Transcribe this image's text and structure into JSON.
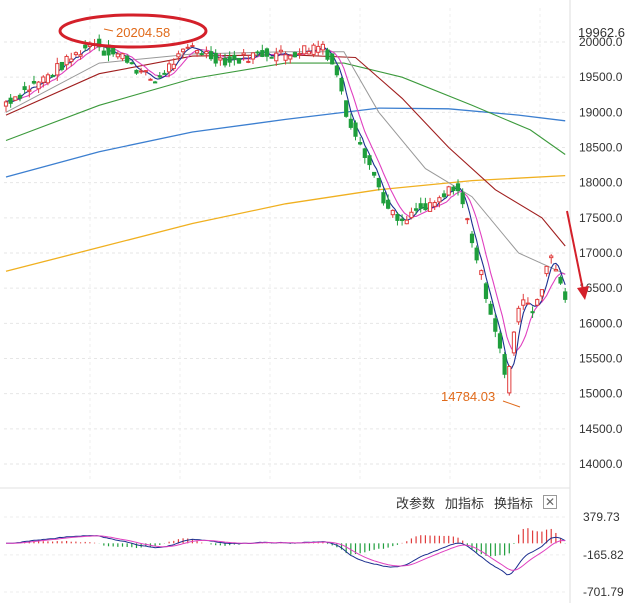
{
  "toolbar": {
    "modify_params": "改参数",
    "add_indicator": "加指标",
    "switch_indicator": "换指标",
    "close_symbol": "✕"
  },
  "annotations": {
    "high_label": "20204.58",
    "low_label": "14784.03",
    "last_price": "19962.6"
  },
  "colors": {
    "up": "#e03c3c",
    "down": "#1f9e3c",
    "ma5": "#1c2f8f",
    "ma10": "#e040c0",
    "ma20": "#999999",
    "ma30": "#a01e1e",
    "ma60": "#3c9a3c",
    "ma120": "#3c7fd0",
    "ma250": "#f0b020",
    "annotation": "#e06a1a",
    "ellipse": "#d4202a",
    "arrow": "#d4202a"
  },
  "chart_data": [
    {
      "type": "candlestick",
      "ylim": [
        13700,
        20350
      ],
      "y_ticks": [
        "20000.0",
        "19500.0",
        "19000.0",
        "18500.0",
        "18000.0",
        "17500.0",
        "17000.0",
        "16500.0",
        "16000.0",
        "15500.0",
        "15000.0",
        "14500.0",
        "14000.0"
      ],
      "y_tick_values": [
        20000,
        19500,
        19000,
        18500,
        18000,
        17500,
        17000,
        16500,
        16000,
        15500,
        15000,
        14500,
        14000
      ],
      "overlays": [
        "ma5",
        "ma10",
        "ma20",
        "ma30",
        "ma60",
        "ma120",
        "ma250"
      ],
      "high_point": 20204.58,
      "low_point": 14784.03
    },
    {
      "type": "macd",
      "ylim": [
        -760,
        440
      ],
      "y_ticks": [
        "379.73",
        "-165.82",
        "-701.79"
      ],
      "y_tick_values": [
        379.73,
        -165.82,
        -701.79
      ]
    }
  ]
}
